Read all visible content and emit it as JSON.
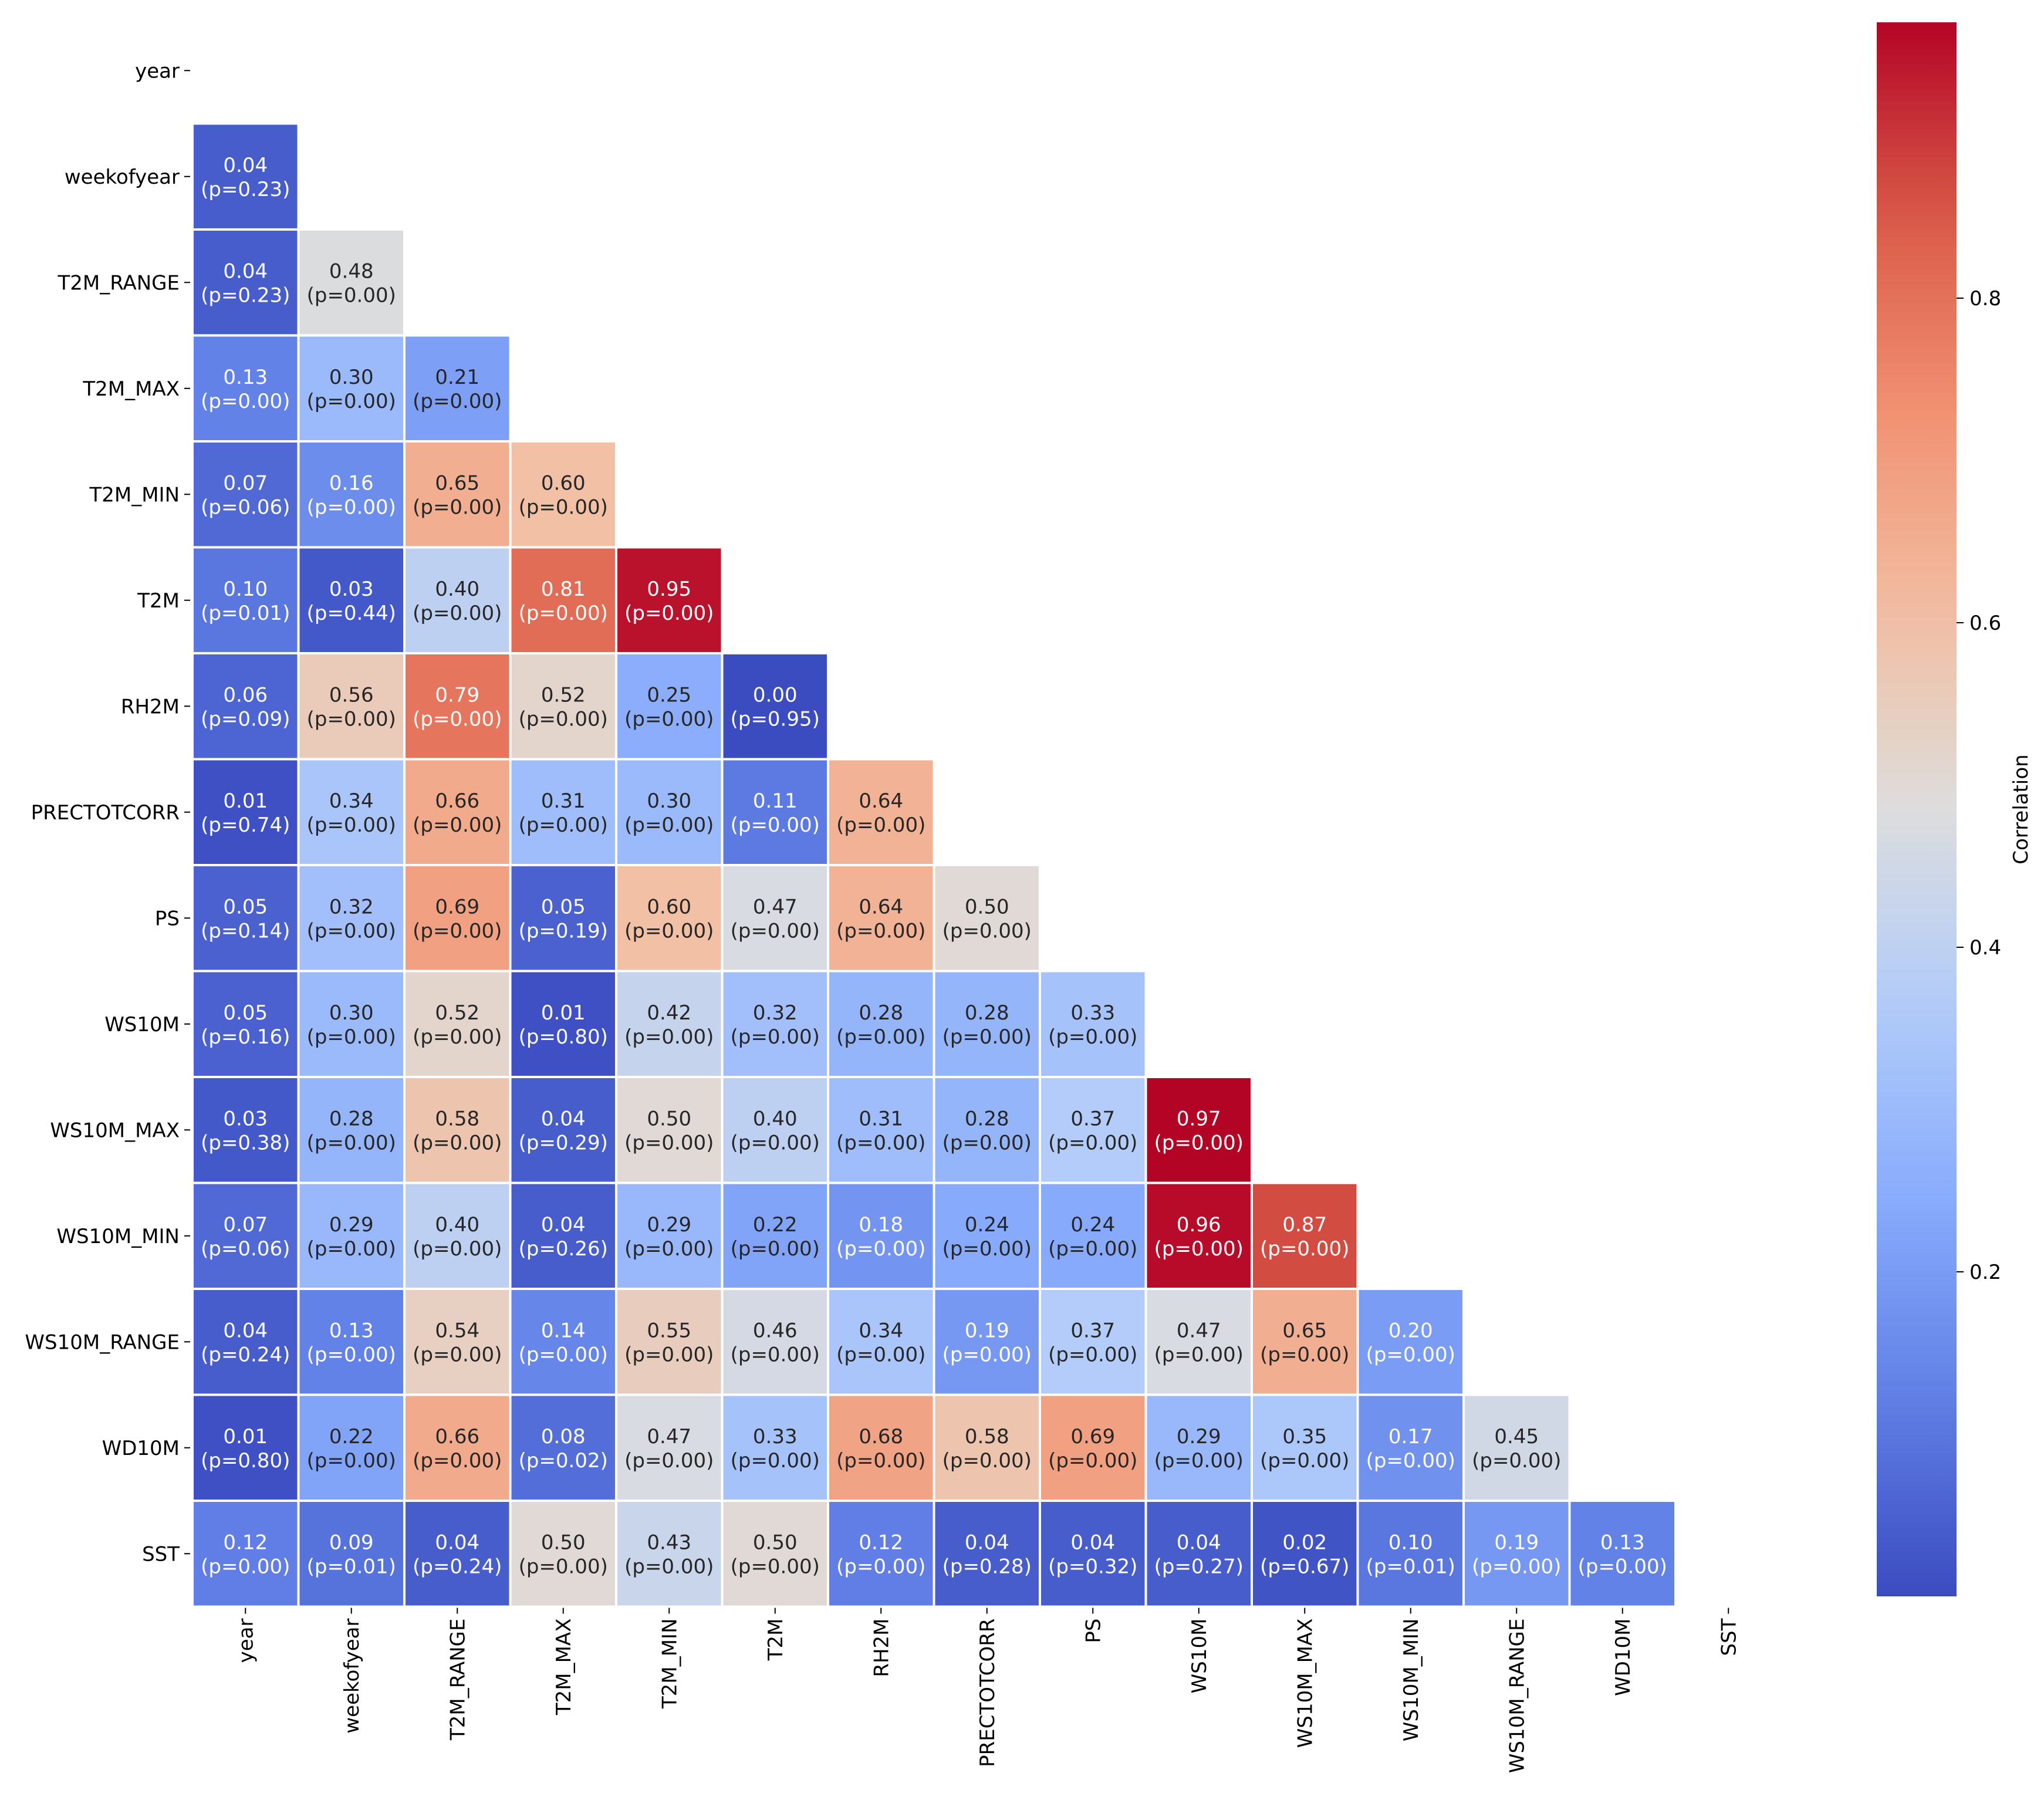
{
  "chart_data": {
    "type": "heatmap",
    "title": "",
    "xlabel": "",
    "ylabel": "",
    "variables": [
      "year",
      "weekofyear",
      "T2M_RANGE",
      "T2M_MAX",
      "T2M_MIN",
      "T2M",
      "RH2M",
      "PRECTOTCORR",
      "PS",
      "WS10M",
      "WS10M_MAX",
      "WS10M_MIN",
      "WS10M_RANGE",
      "WD10M",
      "SST"
    ],
    "mask": "upper-triangle-including-diagonal",
    "colormap": "coolwarm",
    "grid": false,
    "colorbar": {
      "label": "Correlation",
      "range": [
        0.0,
        0.97
      ],
      "ticks": [
        0.2,
        0.4,
        0.6,
        0.8
      ],
      "tick_labels": [
        "0.2",
        "0.4",
        "0.6",
        "0.8"
      ],
      "placement": "right"
    },
    "rows": [
      {
        "corr": [],
        "p": []
      },
      {
        "corr": [
          0.04
        ],
        "p": [
          0.23
        ]
      },
      {
        "corr": [
          0.04,
          0.48
        ],
        "p": [
          0.23,
          0.0
        ]
      },
      {
        "corr": [
          0.13,
          0.3,
          0.21
        ],
        "p": [
          0.0,
          0.0,
          0.0
        ]
      },
      {
        "corr": [
          0.07,
          0.16,
          0.65,
          0.6
        ],
        "p": [
          0.06,
          0.0,
          0.0,
          0.0
        ]
      },
      {
        "corr": [
          0.1,
          0.03,
          0.4,
          0.81,
          0.95
        ],
        "p": [
          0.01,
          0.44,
          0.0,
          0.0,
          0.0
        ]
      },
      {
        "corr": [
          0.06,
          0.56,
          0.79,
          0.52,
          0.25,
          0.0
        ],
        "p": [
          0.09,
          0.0,
          0.0,
          0.0,
          0.0,
          0.95
        ]
      },
      {
        "corr": [
          0.01,
          0.34,
          0.66,
          0.31,
          0.3,
          0.11,
          0.64
        ],
        "p": [
          0.74,
          0.0,
          0.0,
          0.0,
          0.0,
          0.0,
          0.0
        ]
      },
      {
        "corr": [
          0.05,
          0.32,
          0.69,
          0.05,
          0.6,
          0.47,
          0.64,
          0.5
        ],
        "p": [
          0.14,
          0.0,
          0.0,
          0.19,
          0.0,
          0.0,
          0.0,
          0.0
        ]
      },
      {
        "corr": [
          0.05,
          0.3,
          0.52,
          0.01,
          0.42,
          0.32,
          0.28,
          0.28,
          0.33
        ],
        "p": [
          0.16,
          0.0,
          0.0,
          0.8,
          0.0,
          0.0,
          0.0,
          0.0,
          0.0
        ]
      },
      {
        "corr": [
          0.03,
          0.28,
          0.58,
          0.04,
          0.5,
          0.4,
          0.31,
          0.28,
          0.37,
          0.97
        ],
        "p": [
          0.38,
          0.0,
          0.0,
          0.29,
          0.0,
          0.0,
          0.0,
          0.0,
          0.0,
          0.0
        ]
      },
      {
        "corr": [
          0.07,
          0.29,
          0.4,
          0.04,
          0.29,
          0.22,
          0.18,
          0.24,
          0.24,
          0.96,
          0.87
        ],
        "p": [
          0.06,
          0.0,
          0.0,
          0.26,
          0.0,
          0.0,
          0.0,
          0.0,
          0.0,
          0.0,
          0.0
        ]
      },
      {
        "corr": [
          0.04,
          0.13,
          0.54,
          0.14,
          0.55,
          0.46,
          0.34,
          0.19,
          0.37,
          0.47,
          0.65,
          0.2
        ],
        "p": [
          0.24,
          0.0,
          0.0,
          0.0,
          0.0,
          0.0,
          0.0,
          0.0,
          0.0,
          0.0,
          0.0,
          0.0
        ]
      },
      {
        "corr": [
          0.01,
          0.22,
          0.66,
          0.08,
          0.47,
          0.33,
          0.68,
          0.58,
          0.69,
          0.29,
          0.35,
          0.17,
          0.45
        ],
        "p": [
          0.8,
          0.0,
          0.0,
          0.02,
          0.0,
          0.0,
          0.0,
          0.0,
          0.0,
          0.0,
          0.0,
          0.0,
          0.0
        ]
      },
      {
        "corr": [
          0.12,
          0.09,
          0.04,
          0.5,
          0.43,
          0.5,
          0.12,
          0.04,
          0.04,
          0.04,
          0.02,
          0.1,
          0.19,
          0.13
        ],
        "p": [
          0.0,
          0.01,
          0.24,
          0.0,
          0.0,
          0.0,
          0.0,
          0.28,
          0.32,
          0.27,
          0.67,
          0.01,
          0.0,
          0.0
        ]
      }
    ]
  }
}
